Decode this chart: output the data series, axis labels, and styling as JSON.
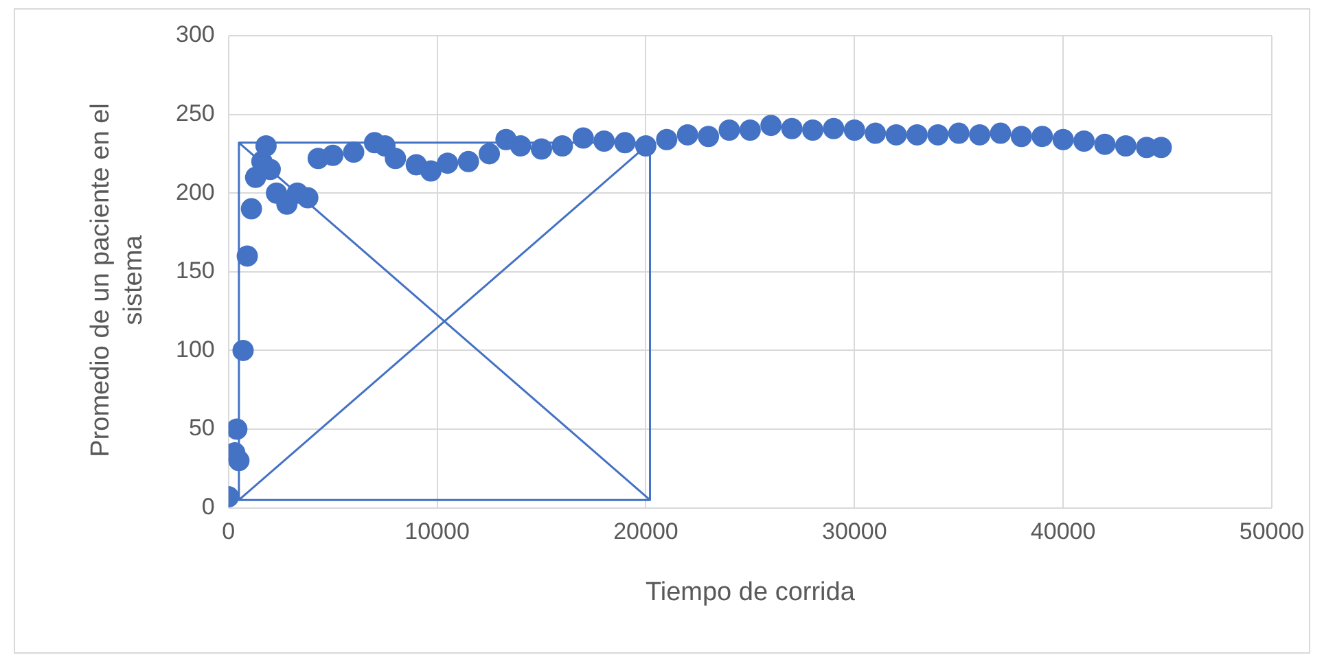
{
  "chart_data": {
    "type": "scatter",
    "xlabel": "Tiempo de corrida",
    "ylabel": "Promedio de un paciente en el sistema",
    "xlim": [
      0,
      50000
    ],
    "xticks": [
      0,
      10000,
      20000,
      30000,
      40000,
      50000
    ],
    "ylim": [
      0,
      300
    ],
    "yticks": [
      0,
      50,
      100,
      150,
      200,
      250,
      300
    ],
    "grid": true,
    "marker": "circle",
    "legend": false,
    "series": [
      {
        "color": "#4472c4",
        "x": [
          0,
          300,
          400,
          500,
          700,
          900,
          1100,
          1300,
          1600,
          1800,
          2000,
          2300,
          2800,
          3300,
          3800,
          4300,
          5000,
          6000,
          7000,
          7500,
          8000,
          9000,
          9700,
          10500,
          11500,
          12500,
          13300,
          14000,
          15000,
          16000,
          17000,
          18000,
          19000,
          20000,
          21000,
          22000,
          23000,
          24000,
          25000,
          26000,
          27000,
          28000,
          29000,
          30000,
          31000,
          32000,
          33000,
          34000,
          35000,
          36000,
          37000,
          38000,
          39000,
          40000,
          41000,
          42000,
          43000,
          44000,
          44700
        ],
        "values": [
          7,
          35,
          50,
          30,
          100,
          160,
          190,
          210,
          220,
          230,
          215,
          200,
          193,
          200,
          197,
          222,
          224,
          226,
          232,
          230,
          222,
          218,
          214,
          219,
          220,
          225,
          234,
          230,
          228,
          230,
          235,
          233,
          232,
          230,
          234,
          237,
          236,
          240,
          240,
          243,
          241,
          240,
          241,
          240,
          238,
          237,
          237,
          237,
          238,
          237,
          238,
          236,
          236,
          234,
          233,
          231,
          230,
          229,
          229
        ]
      },
      {
        "type": "line",
        "color": "#4472c4",
        "marker": "none",
        "x": [
          500,
          20200,
          500,
          20200,
          500,
          500,
          null,
          20200,
          20200
        ],
        "values": [
          232,
          5,
          5,
          232,
          232,
          5,
          null,
          232,
          5
        ]
      }
    ]
  }
}
